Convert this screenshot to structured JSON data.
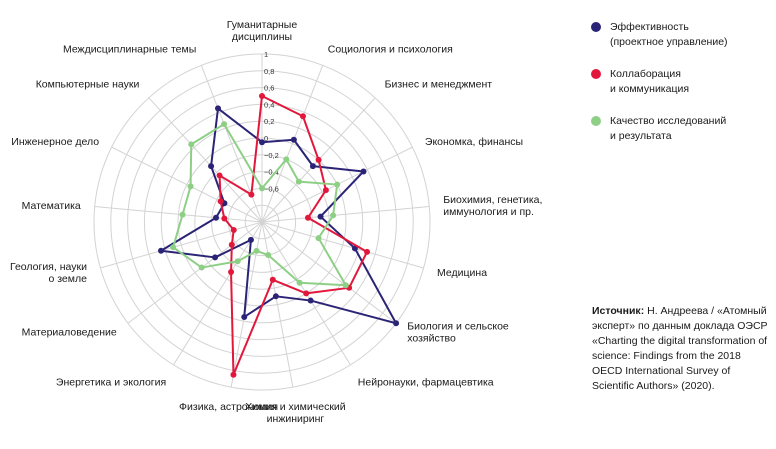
{
  "chart_data": {
    "type": "radar",
    "rlim": [
      -1,
      1
    ],
    "ticks": [
      "1",
      "0,8",
      "0,6",
      "0,4",
      "0,2",
      "0",
      "−0,2",
      "−0,4",
      "−0,6"
    ],
    "categories": [
      [
        "Гуманитарные",
        "дисциплины"
      ],
      [
        "Социология и психология"
      ],
      [
        "Бизнес и менеджмент"
      ],
      [
        "Экономка, финансы"
      ],
      [
        "Биохимия, генетика,",
        "иммунология и пр."
      ],
      [
        "Медицина"
      ],
      [
        "Биология и сельское",
        "хозяйство"
      ],
      [
        "Нейронауки, фармацевтика"
      ],
      [
        "Химия и химический",
        "инжиниринг"
      ],
      [
        "Физика, астрономия"
      ],
      [
        "Энергетика и экология"
      ],
      [
        "Материаловедение"
      ],
      [
        "Геология, науки",
        "о земле"
      ],
      [
        "Математика"
      ],
      [
        "Инженерное дело"
      ],
      [
        "Компьютерные науки"
      ],
      [
        "Междисциплинарные темы"
      ]
    ],
    "series": [
      {
        "name": "Эффективность (проектное управление)",
        "color": "#2b2476",
        "values": [
          -0.05,
          0.05,
          -0.1,
          0.35,
          -0.3,
          0.15,
          1.0,
          0.1,
          -0.1,
          0.15,
          -0.75,
          -0.3,
          0.25,
          -0.45,
          -0.5,
          -0.1,
          0.45
        ]
      },
      {
        "name": "Коллаборация и коммуникация",
        "color": "#e1183c",
        "values": [
          0.5,
          0.35,
          0.0,
          -0.15,
          -0.45,
          0.3,
          0.3,
          0.0,
          -0.3,
          0.85,
          -0.3,
          -0.55,
          -0.65,
          -0.55,
          -0.45,
          -0.25,
          -0.65
        ]
      },
      {
        "name": "Качество исследований и результата",
        "color": "#8ecf86",
        "values": [
          -0.6,
          -0.2,
          -0.35,
          0.0,
          -0.15,
          -0.3,
          0.25,
          -0.15,
          -0.6,
          -0.65,
          -0.45,
          -0.1,
          0.1,
          -0.05,
          -0.05,
          0.25,
          0.25
        ]
      }
    ]
  },
  "legend": [
    {
      "lines": [
        "Эффективность",
        "(проектное управление)"
      ],
      "color": "#2b2476"
    },
    {
      "lines": [
        "Коллаборация",
        "и коммуникация"
      ],
      "color": "#e1183c"
    },
    {
      "lines": [
        "Качество исследований",
        "и результата"
      ],
      "color": "#8ecf86"
    }
  ],
  "source": {
    "label": "Источник:",
    "text": " Н. Андреева / «Атомный эксперт» по данным доклада ОЭСР «Charting the digital transformation of science: Findings from the 2018 OECD International Survey of Scientific Authors» (2020)."
  }
}
